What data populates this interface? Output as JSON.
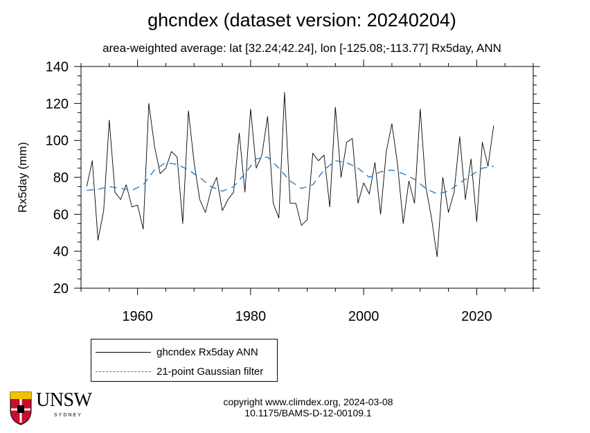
{
  "header": {
    "title": "ghcndex (dataset version: 20240204)",
    "subtitle": "area-weighted average: lat [32.24;42.24], lon [-125.08;-113.77]   Rx5day, ANN"
  },
  "chart_data": {
    "type": "line",
    "ylabel": "Rx5day (mm)",
    "xlim": [
      1950,
      2030
    ],
    "ylim": [
      20,
      140
    ],
    "x_ticks": [
      1960,
      1980,
      2000,
      2020
    ],
    "y_ticks": [
      20,
      40,
      60,
      80,
      100,
      120,
      140
    ],
    "grid": false,
    "series": [
      {
        "name": "ghcndex Rx5day ANN",
        "color": "#000000",
        "style": "solid",
        "x": [
          1951,
          1952,
          1953,
          1954,
          1955,
          1956,
          1957,
          1958,
          1959,
          1960,
          1961,
          1962,
          1963,
          1964,
          1965,
          1966,
          1967,
          1968,
          1969,
          1970,
          1971,
          1972,
          1973,
          1974,
          1975,
          1976,
          1977,
          1978,
          1979,
          1980,
          1981,
          1982,
          1983,
          1984,
          1985,
          1986,
          1987,
          1988,
          1989,
          1990,
          1991,
          1992,
          1993,
          1994,
          1995,
          1996,
          1997,
          1998,
          1999,
          2000,
          2001,
          2002,
          2003,
          2004,
          2005,
          2006,
          2007,
          2008,
          2009,
          2010,
          2011,
          2012,
          2013,
          2014,
          2015,
          2016,
          2017,
          2018,
          2019,
          2020,
          2021,
          2022,
          2023
        ],
        "values": [
          75,
          89,
          46,
          62,
          111,
          72,
          68,
          76,
          64,
          65,
          52,
          120,
          97,
          82,
          85,
          94,
          91,
          55,
          116,
          88,
          68,
          61,
          73,
          80,
          62,
          68,
          72,
          104,
          72,
          117,
          85,
          92,
          113,
          66,
          58,
          126,
          66,
          66,
          54,
          57,
          93,
          89,
          92,
          64,
          118,
          80,
          99,
          101,
          66,
          77,
          71,
          88,
          60,
          94,
          109,
          87,
          55,
          78,
          66,
          117,
          75,
          58,
          37,
          80,
          61,
          72,
          102,
          68,
          90,
          56,
          99,
          86,
          108
        ]
      },
      {
        "name": "21-point Gaussian filter",
        "color": "#2b7bc0",
        "style": "dashed",
        "x": [
          1951,
          1953,
          1955,
          1957,
          1959,
          1961,
          1963,
          1965,
          1967,
          1969,
          1971,
          1973,
          1975,
          1977,
          1979,
          1981,
          1983,
          1985,
          1987,
          1989,
          1991,
          1993,
          1995,
          1997,
          1999,
          2001,
          2003,
          2005,
          2007,
          2009,
          2011,
          2013,
          2015,
          2017,
          2019,
          2021,
          2023
        ],
        "values": [
          73,
          73.5,
          75,
          74,
          73,
          76,
          84,
          88,
          87,
          84,
          80,
          75,
          72.5,
          75,
          82,
          90,
          91,
          85,
          78,
          74,
          76,
          84,
          89,
          88,
          85,
          80,
          83,
          84,
          82,
          79,
          74,
          71,
          72.5,
          77,
          81,
          85,
          86
        ]
      }
    ]
  },
  "legend": {
    "entries": [
      {
        "label": "ghcndex Rx5day ANN"
      },
      {
        "label": "21-point Gaussian filter"
      }
    ]
  },
  "footer": {
    "copyright_line1": "copyright www.climdex.org, 2024-03-08",
    "copyright_line2": "10.1175/BAMS-D-12-00109.1",
    "logo_text": "UNSW",
    "logo_subtext": "SYDNEY"
  }
}
